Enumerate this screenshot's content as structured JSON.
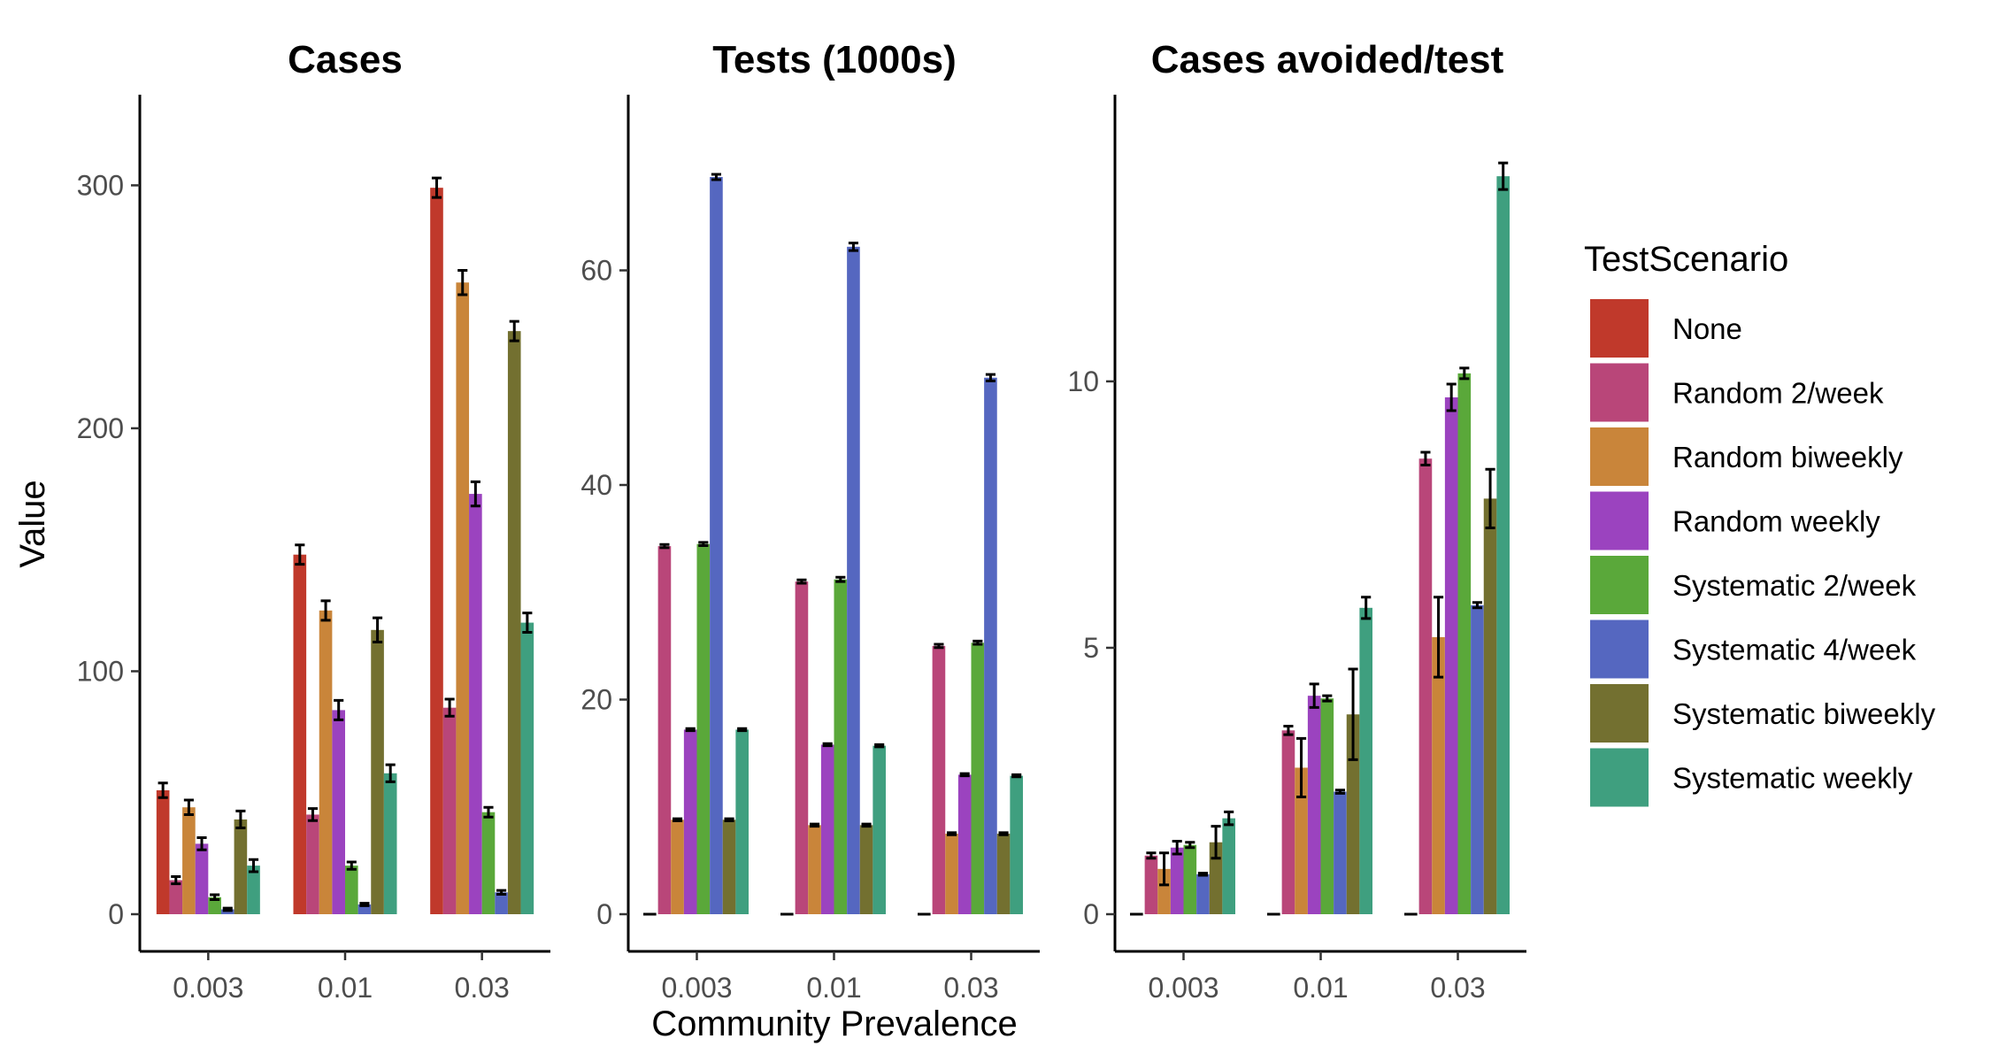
{
  "chart_data": {
    "type": "bar",
    "shared": {
      "categories": [
        "0.003",
        "0.01",
        "0.03"
      ],
      "xlabel": "Community Prevalence",
      "ylabel": "Value",
      "legend_title": "TestScenario",
      "legend_position": "right",
      "grid": false
    },
    "legend_items": [
      {
        "name": "None",
        "color": "#c0392b"
      },
      {
        "name": "Random 2/week",
        "color": "#b94679"
      },
      {
        "name": "Random biweekly",
        "color": "#c9853a"
      },
      {
        "name": "Random weekly",
        "color": "#9b43bf"
      },
      {
        "name": "Systematic 2/week",
        "color": "#5aa83a"
      },
      {
        "name": "Systematic 4/week",
        "color": "#5567c0"
      },
      {
        "name": "Systematic biweekly",
        "color": "#737030"
      },
      {
        "name": "Systematic weekly",
        "color": "#3f9f7f"
      }
    ],
    "panels": [
      {
        "title": "Cases",
        "ylim": [
          0,
          318
        ],
        "yticks": [
          0,
          100,
          200,
          300
        ],
        "series": [
          {
            "name": "None",
            "values": [
              51,
              148,
              299
            ],
            "err": [
              3,
              4,
              4
            ]
          },
          {
            "name": "Random 2/week",
            "values": [
              14,
              41,
              85
            ],
            "err": [
              1.5,
              2.5,
              3.5
            ]
          },
          {
            "name": "Random biweekly",
            "values": [
              44,
              125,
              260
            ],
            "err": [
              3,
              4,
              5
            ]
          },
          {
            "name": "Random weekly",
            "values": [
              29,
              84,
              173
            ],
            "err": [
              2.5,
              4,
              5
            ]
          },
          {
            "name": "Systematic 2/week",
            "values": [
              7,
              20,
              42
            ],
            "err": [
              1,
              1.5,
              2
            ]
          },
          {
            "name": "Systematic 4/week",
            "values": [
              2,
              4,
              9
            ],
            "err": [
              0.5,
              0.5,
              0.8
            ]
          },
          {
            "name": "Systematic biweekly",
            "values": [
              39,
              117,
              240
            ],
            "err": [
              3.5,
              5,
              4
            ]
          },
          {
            "name": "Systematic weekly",
            "values": [
              20,
              58,
              120
            ],
            "err": [
              2.5,
              3.5,
              4
            ]
          }
        ]
      },
      {
        "title": "Tests (1000s)",
        "ylim": [
          0,
          72
        ],
        "yticks": [
          0,
          20,
          40,
          60
        ],
        "series": [
          {
            "name": "None",
            "values": [
              0,
              0,
              0
            ],
            "err": [
              0,
              0,
              0
            ]
          },
          {
            "name": "Random 2/week",
            "values": [
              34.3,
              31.0,
              25.0
            ],
            "err": [
              0.15,
              0.15,
              0.15
            ]
          },
          {
            "name": "Random biweekly",
            "values": [
              8.8,
              8.3,
              7.5
            ],
            "err": [
              0.1,
              0.1,
              0.1
            ]
          },
          {
            "name": "Random weekly",
            "values": [
              17.2,
              15.8,
              13.0
            ],
            "err": [
              0.1,
              0.1,
              0.1
            ]
          },
          {
            "name": "Systematic 2/week",
            "values": [
              34.5,
              31.2,
              25.3
            ],
            "err": [
              0.15,
              0.2,
              0.15
            ]
          },
          {
            "name": "Systematic 4/week",
            "values": [
              68.7,
              62.2,
              50.0
            ],
            "err": [
              0.25,
              0.35,
              0.3
            ]
          },
          {
            "name": "Systematic biweekly",
            "values": [
              8.8,
              8.3,
              7.5
            ],
            "err": [
              0.1,
              0.1,
              0.1
            ]
          },
          {
            "name": "Systematic weekly",
            "values": [
              17.2,
              15.7,
              12.9
            ],
            "err": [
              0.1,
              0.1,
              0.1
            ]
          }
        ]
      },
      {
        "title": "Cases avoided/test",
        "ylim": [
          0,
          14.5
        ],
        "yticks": [
          0,
          5,
          10
        ],
        "series": [
          {
            "name": "None",
            "values": [
              0,
              0,
              0
            ],
            "err": [
              0,
              0,
              0
            ]
          },
          {
            "name": "Random 2/week",
            "values": [
              1.1,
              3.45,
              8.55
            ],
            "err": [
              0.05,
              0.08,
              0.12
            ]
          },
          {
            "name": "Random biweekly",
            "values": [
              0.85,
              2.75,
              5.2
            ],
            "err": [
              0.3,
              0.55,
              0.75
            ]
          },
          {
            "name": "Random weekly",
            "values": [
              1.25,
              4.1,
              9.7
            ],
            "err": [
              0.12,
              0.22,
              0.25
            ]
          },
          {
            "name": "Systematic 2/week",
            "values": [
              1.3,
              4.05,
              10.15
            ],
            "err": [
              0.05,
              0.05,
              0.1
            ]
          },
          {
            "name": "Systematic 4/week",
            "values": [
              0.75,
              2.3,
              5.8
            ],
            "err": [
              0.02,
              0.03,
              0.05
            ]
          },
          {
            "name": "Systematic biweekly",
            "values": [
              1.35,
              3.75,
              7.8
            ],
            "err": [
              0.3,
              0.85,
              0.55
            ]
          },
          {
            "name": "Systematic weekly",
            "values": [
              1.8,
              5.75,
              13.85
            ],
            "err": [
              0.12,
              0.2,
              0.25
            ]
          }
        ]
      }
    ]
  }
}
